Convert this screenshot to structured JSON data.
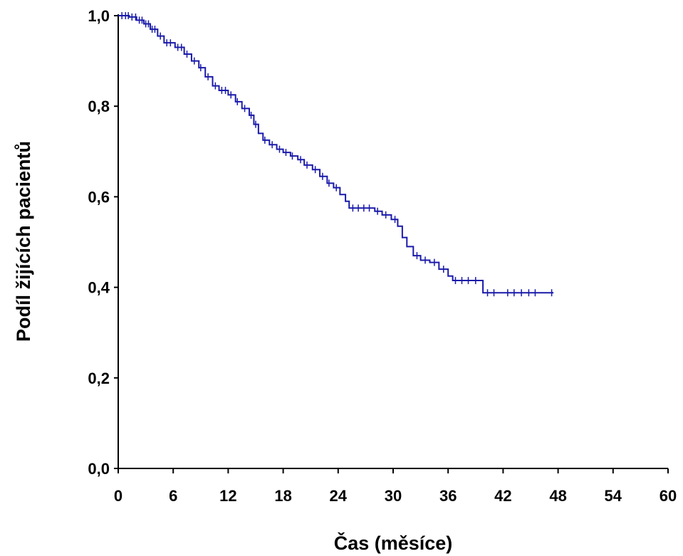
{
  "chart_data": {
    "type": "line",
    "subtype": "kaplan-meier-step",
    "xlabel": "Čas (měsíce)",
    "ylabel": "Podíl žijících pacientů",
    "xlim": [
      0,
      60
    ],
    "ylim": [
      0,
      1
    ],
    "x_ticks": [
      0,
      6,
      12,
      18,
      24,
      30,
      36,
      42,
      48,
      54,
      60
    ],
    "x_tick_labels": [
      "0",
      "6",
      "12",
      "18",
      "24",
      "30",
      "36",
      "42",
      "48",
      "54",
      "60"
    ],
    "y_ticks": [
      0,
      0.2,
      0.4,
      0.6,
      0.8,
      1.0
    ],
    "y_tick_labels": [
      "0,0",
      "0,2",
      "0,4",
      "0,6",
      "0,8",
      "1,0"
    ],
    "grid": false,
    "legend": "none",
    "series_color": "#1a1aaa",
    "series": [
      {
        "steps": [
          [
            0,
            1.0
          ],
          [
            1.2,
            0.997
          ],
          [
            2.0,
            0.99
          ],
          [
            2.8,
            0.982
          ],
          [
            3.5,
            0.97
          ],
          [
            4.3,
            0.955
          ],
          [
            5.0,
            0.94
          ],
          [
            6.2,
            0.93
          ],
          [
            7.2,
            0.915
          ],
          [
            8.0,
            0.9
          ],
          [
            8.8,
            0.885
          ],
          [
            9.5,
            0.865
          ],
          [
            10.3,
            0.845
          ],
          [
            11.0,
            0.835
          ],
          [
            12.0,
            0.825
          ],
          [
            12.8,
            0.81
          ],
          [
            13.5,
            0.795
          ],
          [
            14.3,
            0.78
          ],
          [
            14.8,
            0.76
          ],
          [
            15.3,
            0.74
          ],
          [
            15.8,
            0.725
          ],
          [
            16.5,
            0.715
          ],
          [
            17.3,
            0.705
          ],
          [
            18.0,
            0.698
          ],
          [
            18.8,
            0.69
          ],
          [
            19.6,
            0.682
          ],
          [
            20.3,
            0.67
          ],
          [
            21.2,
            0.66
          ],
          [
            22.0,
            0.645
          ],
          [
            22.8,
            0.63
          ],
          [
            23.5,
            0.62
          ],
          [
            24.2,
            0.605
          ],
          [
            24.8,
            0.59
          ],
          [
            25.2,
            0.575
          ],
          [
            27.0,
            0.575
          ],
          [
            28.0,
            0.568
          ],
          [
            28.8,
            0.56
          ],
          [
            29.8,
            0.55
          ],
          [
            30.5,
            0.535
          ],
          [
            31.0,
            0.51
          ],
          [
            31.5,
            0.49
          ],
          [
            32.2,
            0.47
          ],
          [
            33.0,
            0.46
          ],
          [
            34.0,
            0.455
          ],
          [
            35.0,
            0.44
          ],
          [
            36.0,
            0.425
          ],
          [
            36.5,
            0.415
          ],
          [
            39.5,
            0.415
          ],
          [
            39.8,
            0.388
          ],
          [
            47.5,
            0.388
          ]
        ],
        "censored_x": [
          0.4,
          0.8,
          1.1,
          1.5,
          1.9,
          2.3,
          2.6,
          3.0,
          3.3,
          3.7,
          4.0,
          4.6,
          5.3,
          5.7,
          6.5,
          6.9,
          7.5,
          8.3,
          9.0,
          9.8,
          10.6,
          11.3,
          11.7,
          12.3,
          13.0,
          13.8,
          14.5,
          15.0,
          16.0,
          16.8,
          17.6,
          18.3,
          19.0,
          19.9,
          20.6,
          21.5,
          22.3,
          23.0,
          23.8,
          25.6,
          26.2,
          26.8,
          27.4,
          28.3,
          29.2,
          30.2,
          32.6,
          33.5,
          34.5,
          35.5,
          36.8,
          37.5,
          38.2,
          39.0,
          40.3,
          41.0,
          42.5,
          43.2,
          44.0,
          44.8,
          45.5,
          47.3
        ]
      }
    ]
  }
}
